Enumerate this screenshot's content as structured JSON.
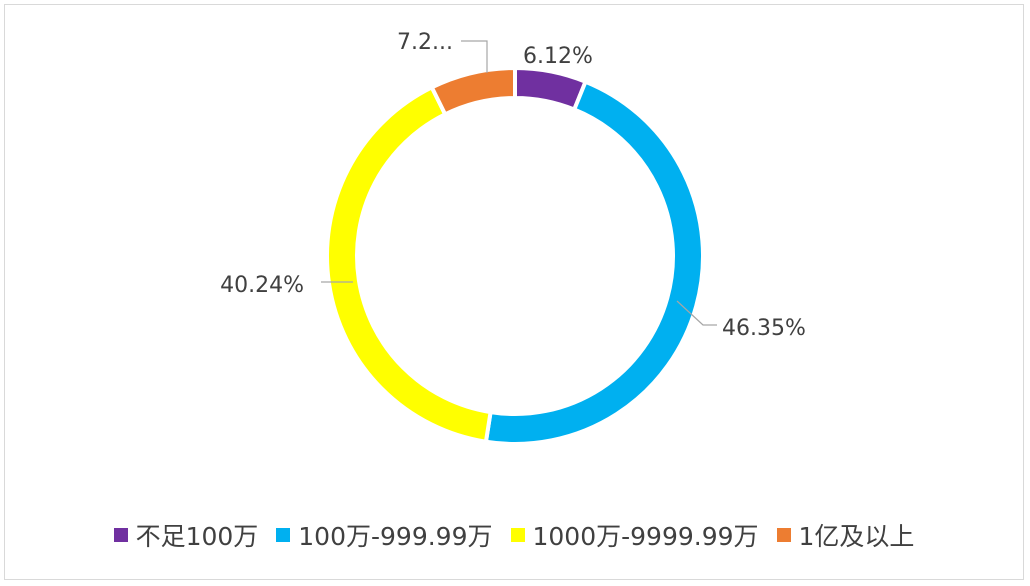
{
  "chart_data": {
    "type": "pie",
    "donut": true,
    "categories": [
      "不足100万",
      "100万-999.99万",
      "1000万-9999.99万",
      "1亿及以上"
    ],
    "values": [
      6.12,
      46.35,
      40.24,
      7.29
    ],
    "data_labels": [
      "6.12%",
      "46.35%",
      "40.24%",
      "7.2..."
    ],
    "colors": [
      "#7030A0",
      "#00B0F0",
      "#FFFF00",
      "#ED7D31"
    ],
    "legend_position": "bottom",
    "title": ""
  }
}
